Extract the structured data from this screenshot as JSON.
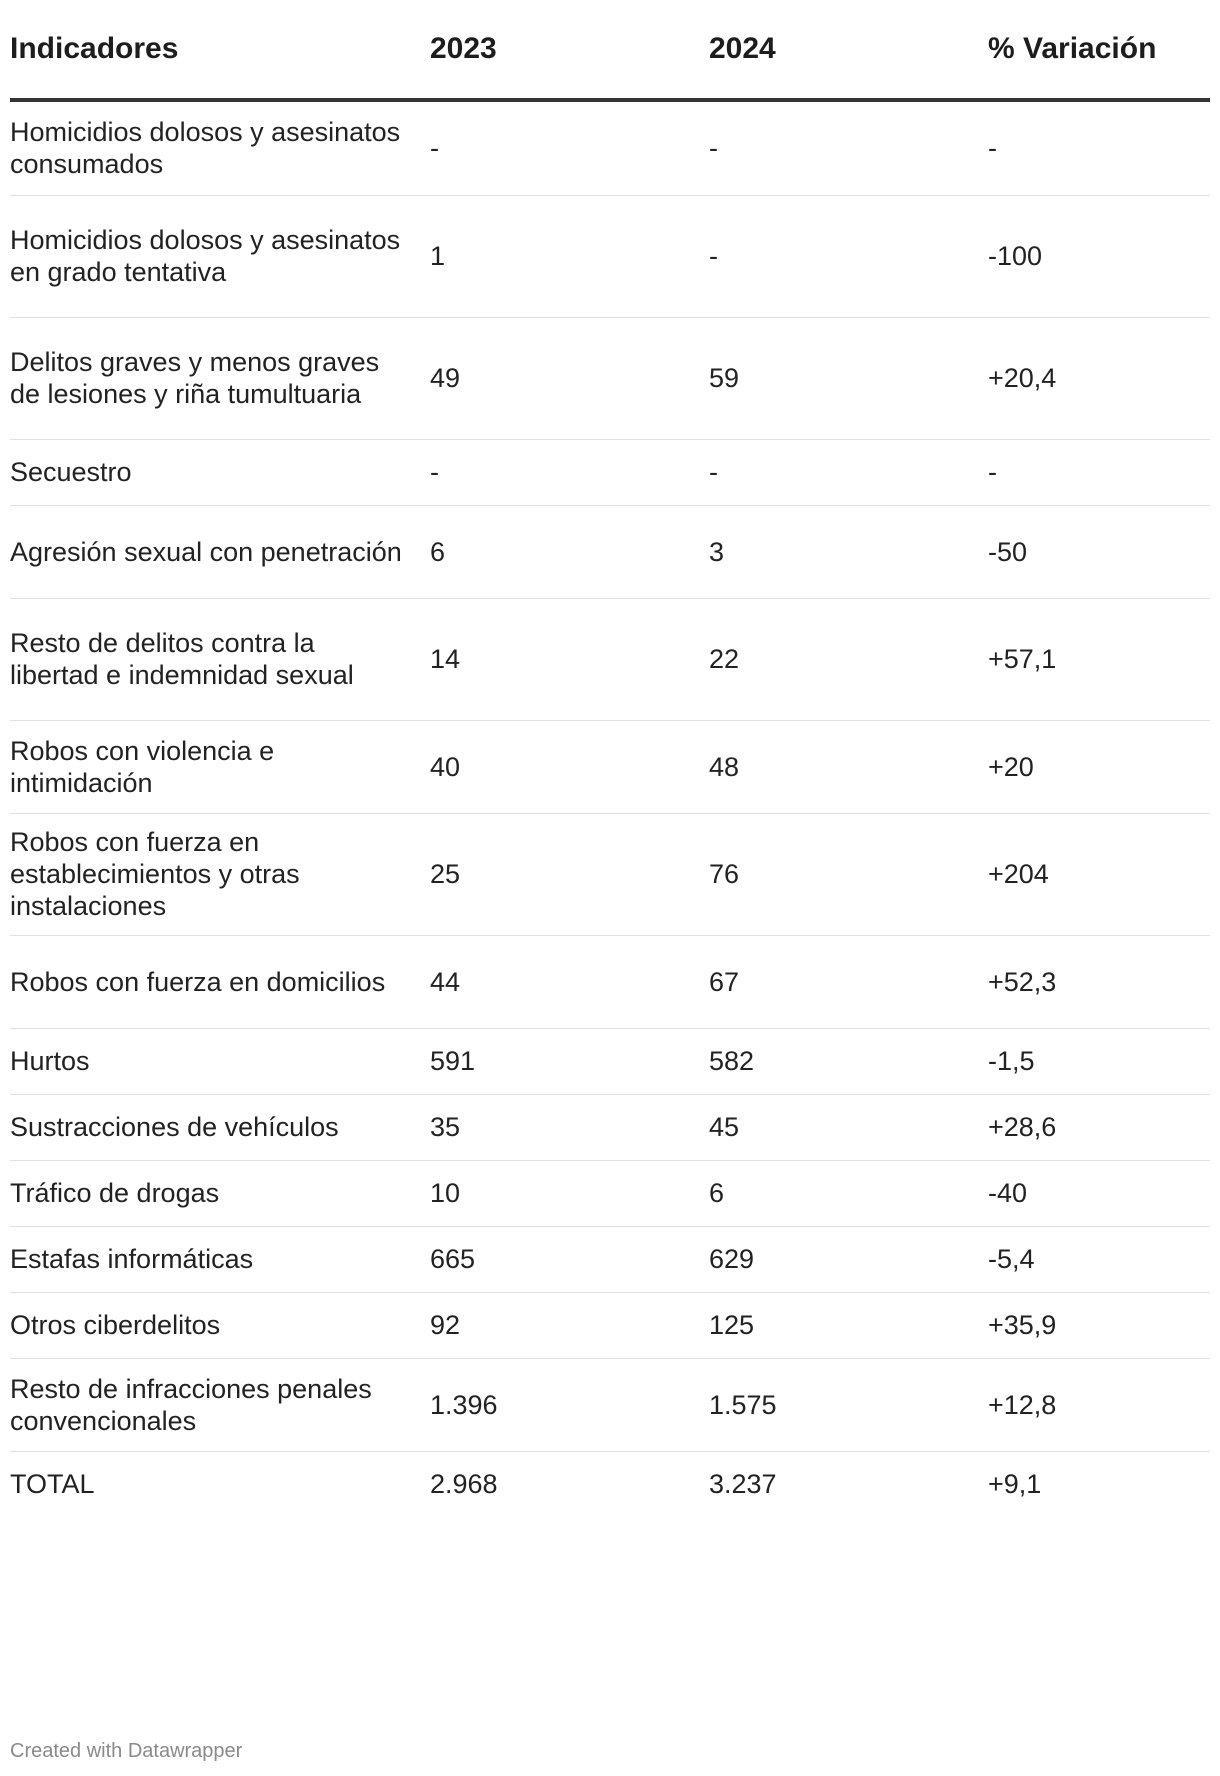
{
  "table": {
    "headers": [
      "Indicadores",
      "2023",
      "2024",
      "% Variación"
    ],
    "rows": [
      [
        "Homicidios dolosos y asesinatos consumados",
        "-",
        "-",
        "-"
      ],
      [
        "Homicidios dolosos y asesinatos en grado tentativa",
        "1",
        "-",
        "-100"
      ],
      [
        "Delitos graves y menos graves de lesiones y riña tumultuaria",
        "49",
        "59",
        "+20,4"
      ],
      [
        "Secuestro",
        "-",
        "-",
        "-"
      ],
      [
        "Agresión sexual con penetración",
        "6",
        "3",
        "-50"
      ],
      [
        "Resto de delitos contra la libertad e indemnidad sexual",
        "14",
        "22",
        "+57,1"
      ],
      [
        "Robos con violencia e intimidación",
        "40",
        "48",
        "+20"
      ],
      [
        "Robos con fuerza en establecimientos y otras instalaciones",
        "25",
        "76",
        "+204"
      ],
      [
        "Robos con fuerza en domicilios",
        "44",
        "67",
        "+52,3"
      ],
      [
        "Hurtos",
        "591",
        "582",
        "-1,5"
      ],
      [
        "Sustracciones de vehículos",
        "35",
        "45",
        "+28,6"
      ],
      [
        "Tráfico de drogas",
        "10",
        "6",
        "-40"
      ],
      [
        "Estafas informáticas",
        "665",
        "629",
        "-5,4"
      ],
      [
        "Otros ciberdelitos",
        "92",
        "125",
        "+35,9"
      ],
      [
        "Resto de infracciones penales convencionales",
        "1.396",
        "1.575",
        "+12,8"
      ],
      [
        "TOTAL",
        "2.968",
        "3.237",
        "+9,1"
      ]
    ]
  },
  "footer": {
    "credit": "Created with Datawrapper"
  }
}
